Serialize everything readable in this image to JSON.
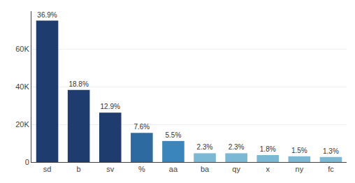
{
  "chart_data": {
    "type": "bar",
    "categories": [
      "sd",
      "b",
      "sv",
      "%",
      "aa",
      "ba",
      "qy",
      "x",
      "ny",
      "fc"
    ],
    "values": [
      75000,
      38200,
      26200,
      15450,
      11170,
      4670,
      4670,
      3660,
      3050,
      2640
    ],
    "bar_labels": [
      "36.9%",
      "18.8%",
      "12.9%",
      "7.6%",
      "5.5%",
      "2.3%",
      "2.3%",
      "1.8%",
      "1.5%",
      "1.3%"
    ],
    "colors": [
      "#1e3d6e",
      "#1e3d6e",
      "#1e3d6e",
      "#2d6aa0",
      "#3a85bb",
      "#7ab8d4",
      "#7ab8d4",
      "#7ab8d4",
      "#7ab8d4",
      "#7ab8d4"
    ],
    "ylim": [
      0,
      80000
    ],
    "yticks": [
      0,
      {
        "value": 20000,
        "label": "20K"
      },
      {
        "value": 40000,
        "label": "40K"
      },
      {
        "value": 60000,
        "label": "60K"
      }
    ],
    "grid": true
  }
}
